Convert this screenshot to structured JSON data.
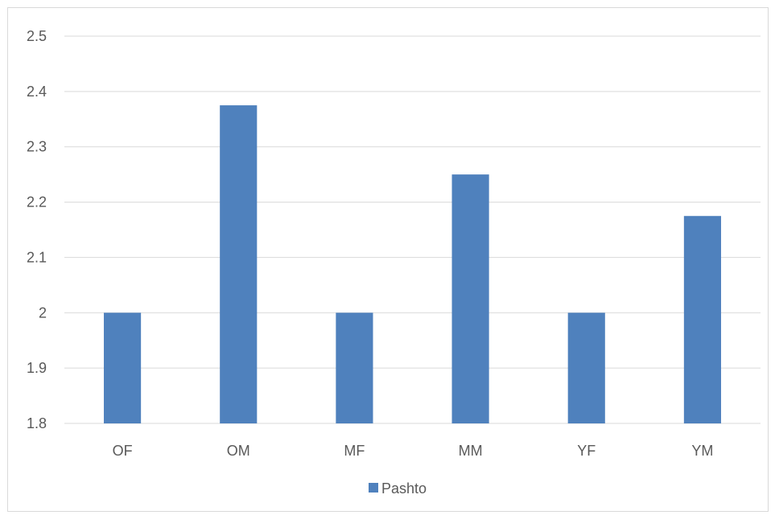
{
  "chart_data": {
    "type": "bar",
    "categories": [
      "OF",
      "OM",
      "MF",
      "MM",
      "YF",
      "YM"
    ],
    "series": [
      {
        "name": "Pashto",
        "values": [
          2.0,
          2.375,
          2.0,
          2.25,
          2.0,
          2.175
        ],
        "color": "#4f81bd"
      }
    ],
    "ylim": [
      1.8,
      2.5
    ],
    "yticks": [
      "1.8",
      "1.9",
      "2",
      "2.1",
      "2.2",
      "2.3",
      "2.4",
      "2.5"
    ],
    "grid": true,
    "legend_position": "bottom"
  }
}
